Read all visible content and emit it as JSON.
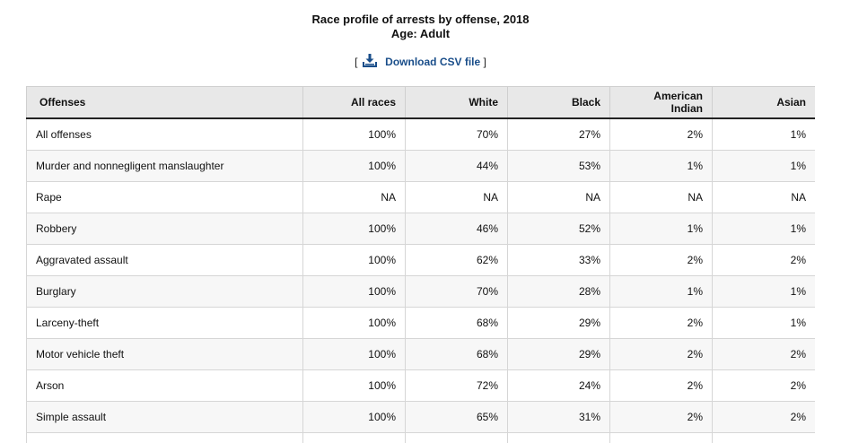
{
  "header": {
    "title": "Race profile of arrests by offense, 2018",
    "subtitle": "Age: Adult"
  },
  "download": {
    "open_bracket": "[",
    "label": "Download CSV file",
    "close_bracket": "]",
    "icon": "download-icon"
  },
  "table": {
    "columns": [
      "Offenses",
      "All races",
      "White",
      "Black",
      "American Indian",
      "Asian"
    ],
    "rows": [
      [
        "All offenses",
        "100%",
        "70%",
        "27%",
        "2%",
        "1%"
      ],
      [
        "Murder and nonnegligent manslaughter",
        "100%",
        "44%",
        "53%",
        "1%",
        "1%"
      ],
      [
        "Rape",
        "NA",
        "NA",
        "NA",
        "NA",
        "NA"
      ],
      [
        "Robbery",
        "100%",
        "46%",
        "52%",
        "1%",
        "1%"
      ],
      [
        "Aggravated assault",
        "100%",
        "62%",
        "33%",
        "2%",
        "2%"
      ],
      [
        "Burglary",
        "100%",
        "70%",
        "28%",
        "1%",
        "1%"
      ],
      [
        "Larceny-theft",
        "100%",
        "68%",
        "29%",
        "2%",
        "1%"
      ],
      [
        "Motor vehicle theft",
        "100%",
        "68%",
        "29%",
        "2%",
        "2%"
      ],
      [
        "Arson",
        "100%",
        "72%",
        "24%",
        "2%",
        "2%"
      ],
      [
        "Simple assault",
        "100%",
        "65%",
        "31%",
        "2%",
        "2%"
      ],
      [
        "",
        "",
        "",
        "",
        "",
        ""
      ]
    ]
  }
}
